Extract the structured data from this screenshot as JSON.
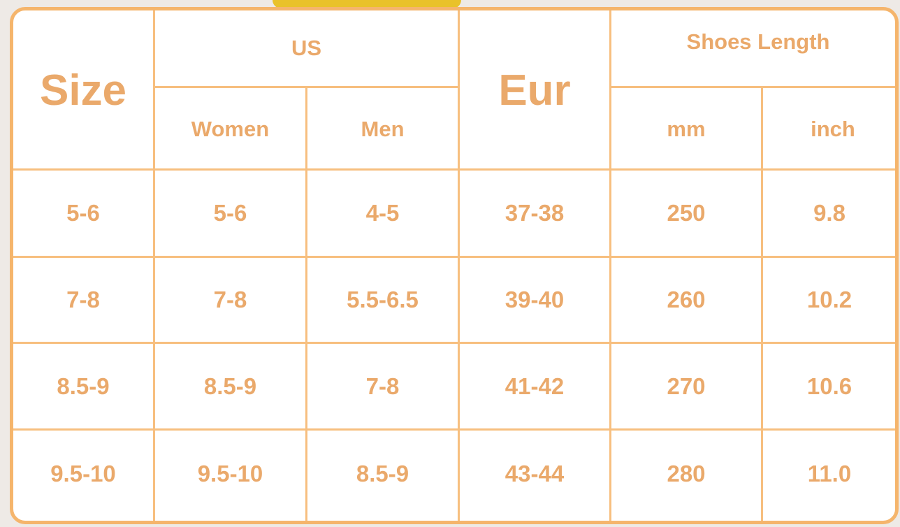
{
  "header": {
    "size": "Size",
    "us": "US",
    "women": "Women",
    "men": "Men",
    "eur": "Eur",
    "shoes_length": "Shoes Length",
    "mm": "mm",
    "inch": "inch"
  },
  "rows": [
    [
      "5-6",
      "5-6",
      "4-5",
      "37-38",
      "250",
      "9.8"
    ],
    [
      "7-8",
      "7-8",
      "5.5-6.5",
      "39-40",
      "260",
      "10.2"
    ],
    [
      "8.5-9",
      "8.5-9",
      "7-8",
      "41-42",
      "270",
      "10.6"
    ],
    [
      "9.5-10",
      "9.5-10",
      "8.5-9",
      "43-44",
      "280",
      "11.0"
    ]
  ],
  "colors": {
    "border": "#f5b56c",
    "text": "#eaa96b"
  }
}
